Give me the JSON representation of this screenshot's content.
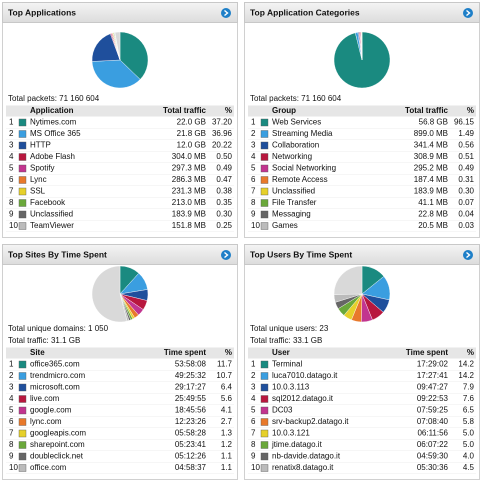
{
  "panels": [
    {
      "title": "Top Applications",
      "summary": [
        "Total packets: 71 160 604"
      ],
      "columns": [
        "Application",
        "Total traffic",
        "%"
      ],
      "rows": [
        [
          1,
          "Nytimes.com",
          "22.0 GB"
        ],
        [
          2,
          "MS Office 365",
          "21.8 GB"
        ],
        [
          3,
          "HTTP",
          "12.0 GB"
        ],
        [
          4,
          "Adobe Flash",
          "304.0 MB"
        ],
        [
          5,
          "Spotify",
          "297.3 MB"
        ],
        [
          6,
          "Lync",
          "286.3 MB"
        ],
        [
          7,
          "SSL",
          "231.3 MB"
        ],
        [
          8,
          "Facebook",
          "213.0 MB"
        ],
        [
          9,
          "Unclassified",
          "183.9 MB"
        ],
        [
          10,
          "TeamViewer",
          "151.8 MB"
        ]
      ],
      "pie": {
        "type": "pie",
        "values": [
          37.2,
          36.96,
          20.22,
          0.5,
          0.49,
          0.47,
          0.38,
          0.35,
          0.3,
          0.25
        ],
        "value_labels": [
          "37.20",
          "36.96",
          "20.22",
          "0.50",
          "0.49",
          "0.47",
          "0.38",
          "0.35",
          "0.30",
          "0.25"
        ],
        "colors": [
          "#1a8a80",
          "#3a9ee0",
          "#1f4f9c",
          "#b8173e",
          "#c2358f",
          "#e8792b",
          "#e6d02a",
          "#6aa83a",
          "#666666",
          "#bbbbbb"
        ]
      }
    },
    {
      "title": "Top Application Categories",
      "summary": [
        "Total packets: 71 160 604"
      ],
      "columns": [
        "Group",
        "Total traffic",
        "%"
      ],
      "rows": [
        [
          1,
          "Web Services",
          "56.8 GB"
        ],
        [
          2,
          "Streaming Media",
          "899.0 MB"
        ],
        [
          3,
          "Collaboration",
          "341.4 MB"
        ],
        [
          4,
          "Networking",
          "308.9 MB"
        ],
        [
          5,
          "Social Networking",
          "295.2 MB"
        ],
        [
          6,
          "Remote Access",
          "187.4 MB"
        ],
        [
          7,
          "Unclassified",
          "183.9 MB"
        ],
        [
          8,
          "File Transfer",
          "41.1 MB"
        ],
        [
          9,
          "Messaging",
          "22.8 MB"
        ],
        [
          10,
          "Games",
          "20.5 MB"
        ]
      ],
      "pie": {
        "type": "pie",
        "values": [
          96.15,
          1.49,
          0.56,
          0.51,
          0.49,
          0.31,
          0.3,
          0.07,
          0.04,
          0.03
        ],
        "value_labels": [
          "96.15",
          "1.49",
          "0.56",
          "0.51",
          "0.49",
          "0.31",
          "0.30",
          "0.07",
          "0.04",
          "0.03"
        ],
        "colors": [
          "#1a8a80",
          "#3a9ee0",
          "#1f4f9c",
          "#b8173e",
          "#c2358f",
          "#e8792b",
          "#e6d02a",
          "#6aa83a",
          "#666666",
          "#bbbbbb"
        ]
      }
    },
    {
      "title": "Top Sites By Time Spent",
      "summary": [
        "Total unique domains: 1 050",
        "Total traffic: 31.1 GB"
      ],
      "columns": [
        "Site",
        "Time spent",
        "%"
      ],
      "rows": [
        [
          1,
          "office365.com",
          "53:58:08"
        ],
        [
          2,
          "trendmicro.com",
          "49:25:32"
        ],
        [
          3,
          "microsoft.com",
          "29:17:27"
        ],
        [
          4,
          "live.com",
          "25:49:55"
        ],
        [
          5,
          "google.com",
          "18:45:56"
        ],
        [
          6,
          "lync.com",
          "12:23:26"
        ],
        [
          7,
          "googleapis.com",
          "05:58:28"
        ],
        [
          8,
          "sharepoint.com",
          "05:23:41"
        ],
        [
          9,
          "doubleclick.net",
          "05:12:26"
        ],
        [
          10,
          "office.com",
          "04:58:37"
        ]
      ],
      "pie": {
        "type": "pie",
        "values": [
          11.7,
          10.7,
          6.4,
          5.6,
          4.1,
          2.7,
          1.3,
          1.2,
          1.1,
          1.1
        ],
        "value_labels": [
          "11.7",
          "10.7",
          "6.4",
          "5.6",
          "4.1",
          "2.7",
          "1.3",
          "1.2",
          "1.1",
          "1.1"
        ],
        "colors": [
          "#1a8a80",
          "#3a9ee0",
          "#1f4f9c",
          "#b8173e",
          "#c2358f",
          "#e8792b",
          "#e6d02a",
          "#6aa83a",
          "#666666",
          "#bbbbbb"
        ]
      }
    },
    {
      "title": "Top Users By Time Spent",
      "summary": [
        "Total unique users: 23",
        "Total traffic: 33.1 GB"
      ],
      "columns": [
        "User",
        "Time spent",
        "%"
      ],
      "rows": [
        [
          1,
          "Terminal",
          "17:29:02"
        ],
        [
          2,
          "luca7010.datago.it",
          "17:27:41"
        ],
        [
          3,
          "10.0.3.113",
          "09:47:27"
        ],
        [
          4,
          "sql2012.datago.it",
          "09:22:53"
        ],
        [
          5,
          "DC03",
          "07:59:25"
        ],
        [
          6,
          "srv-backup2.datago.it",
          "07:08:40"
        ],
        [
          7,
          "10.0.3.121",
          "06:11:56"
        ],
        [
          8,
          "jtime.datago.it",
          "06:07:22"
        ],
        [
          9,
          "nb-davide.datago.it",
          "04:59:30"
        ],
        [
          10,
          "renatix8.datago.it",
          "05:30:36"
        ]
      ],
      "pie": {
        "type": "pie",
        "values": [
          14.2,
          14.2,
          7.9,
          7.6,
          6.5,
          5.8,
          5.0,
          5.0,
          4.0,
          4.5
        ],
        "value_labels": [
          "14.2",
          "14.2",
          "7.9",
          "7.6",
          "6.5",
          "5.8",
          "5.0",
          "5.0",
          "4.0",
          "4.5"
        ],
        "colors": [
          "#1a8a80",
          "#3a9ee0",
          "#1f4f9c",
          "#b8173e",
          "#c2358f",
          "#e8792b",
          "#e6d02a",
          "#6aa83a",
          "#666666",
          "#bbbbbb"
        ]
      }
    }
  ]
}
